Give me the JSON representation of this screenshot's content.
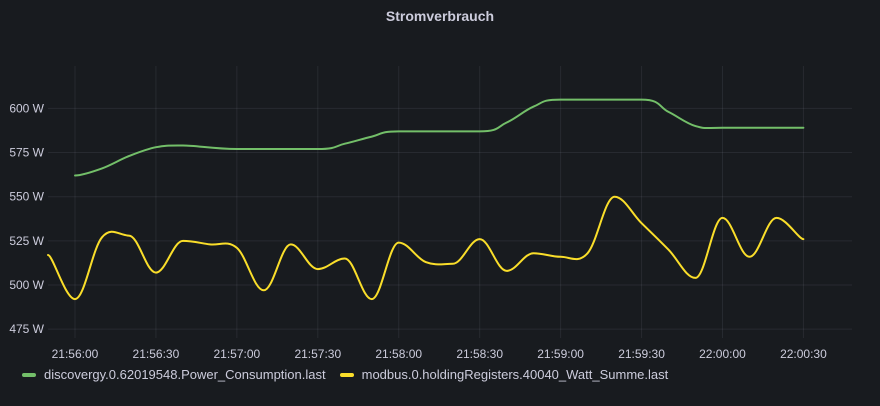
{
  "panel": {
    "title": "Stromverbrauch"
  },
  "chart_data": {
    "type": "line",
    "title": "Stromverbrauch",
    "xlabel": "",
    "ylabel": "",
    "unit": "W",
    "ylim": [
      470,
      624
    ],
    "y_ticks": [
      475,
      500,
      525,
      550,
      575,
      600
    ],
    "y_tick_labels": [
      "475 W",
      "500 W",
      "525 W",
      "550 W",
      "575 W",
      "600 W"
    ],
    "x_range": [
      "21:55:50",
      "22:00:48"
    ],
    "x_ticks": [
      "21:56:00",
      "21:56:30",
      "21:57:00",
      "21:57:30",
      "21:58:00",
      "21:58:30",
      "21:59:00",
      "21:59:30",
      "22:00:00",
      "22:00:30"
    ],
    "grid": true,
    "legend_placement": "bottom-left",
    "series": [
      {
        "name": "discovergy.0.62019548.Power_Consumption.last",
        "color": "#73bf69",
        "x": [
          "21:56:00",
          "21:56:10",
          "21:56:20",
          "21:56:30",
          "21:56:40",
          "21:57:00",
          "21:57:30",
          "21:57:40",
          "21:57:50",
          "21:58:00",
          "21:58:30",
          "21:58:40",
          "21:58:50",
          "21:59:00",
          "21:59:30",
          "21:59:40",
          "21:59:50",
          "22:00:00",
          "22:00:30"
        ],
        "values": [
          562,
          566,
          573,
          578,
          579,
          577,
          577,
          580,
          584,
          587,
          587,
          592,
          601,
          605,
          605,
          598,
          590,
          589,
          589
        ]
      },
      {
        "name": "modbus.0.holdingRegisters.40040_Watt_Summe.last",
        "color": "#fade2a",
        "x": [
          "21:55:50",
          "21:56:00",
          "21:56:10",
          "21:56:20",
          "21:56:30",
          "21:56:40",
          "21:56:50",
          "21:57:00",
          "21:57:10",
          "21:57:20",
          "21:57:30",
          "21:57:40",
          "21:57:50",
          "21:58:00",
          "21:58:10",
          "21:58:20",
          "21:58:30",
          "21:58:40",
          "21:58:50",
          "21:59:00",
          "21:59:10",
          "21:59:20",
          "21:59:30",
          "21:59:40",
          "21:59:50",
          "22:00:00",
          "22:00:10",
          "22:00:20",
          "22:00:30"
        ],
        "values": [
          517,
          492,
          527,
          528,
          507,
          525,
          523,
          521,
          497,
          523,
          509,
          515,
          492,
          524,
          513,
          512,
          526,
          508,
          518,
          516,
          518,
          550,
          535,
          520,
          504,
          538,
          516,
          538,
          526
        ]
      }
    ]
  }
}
